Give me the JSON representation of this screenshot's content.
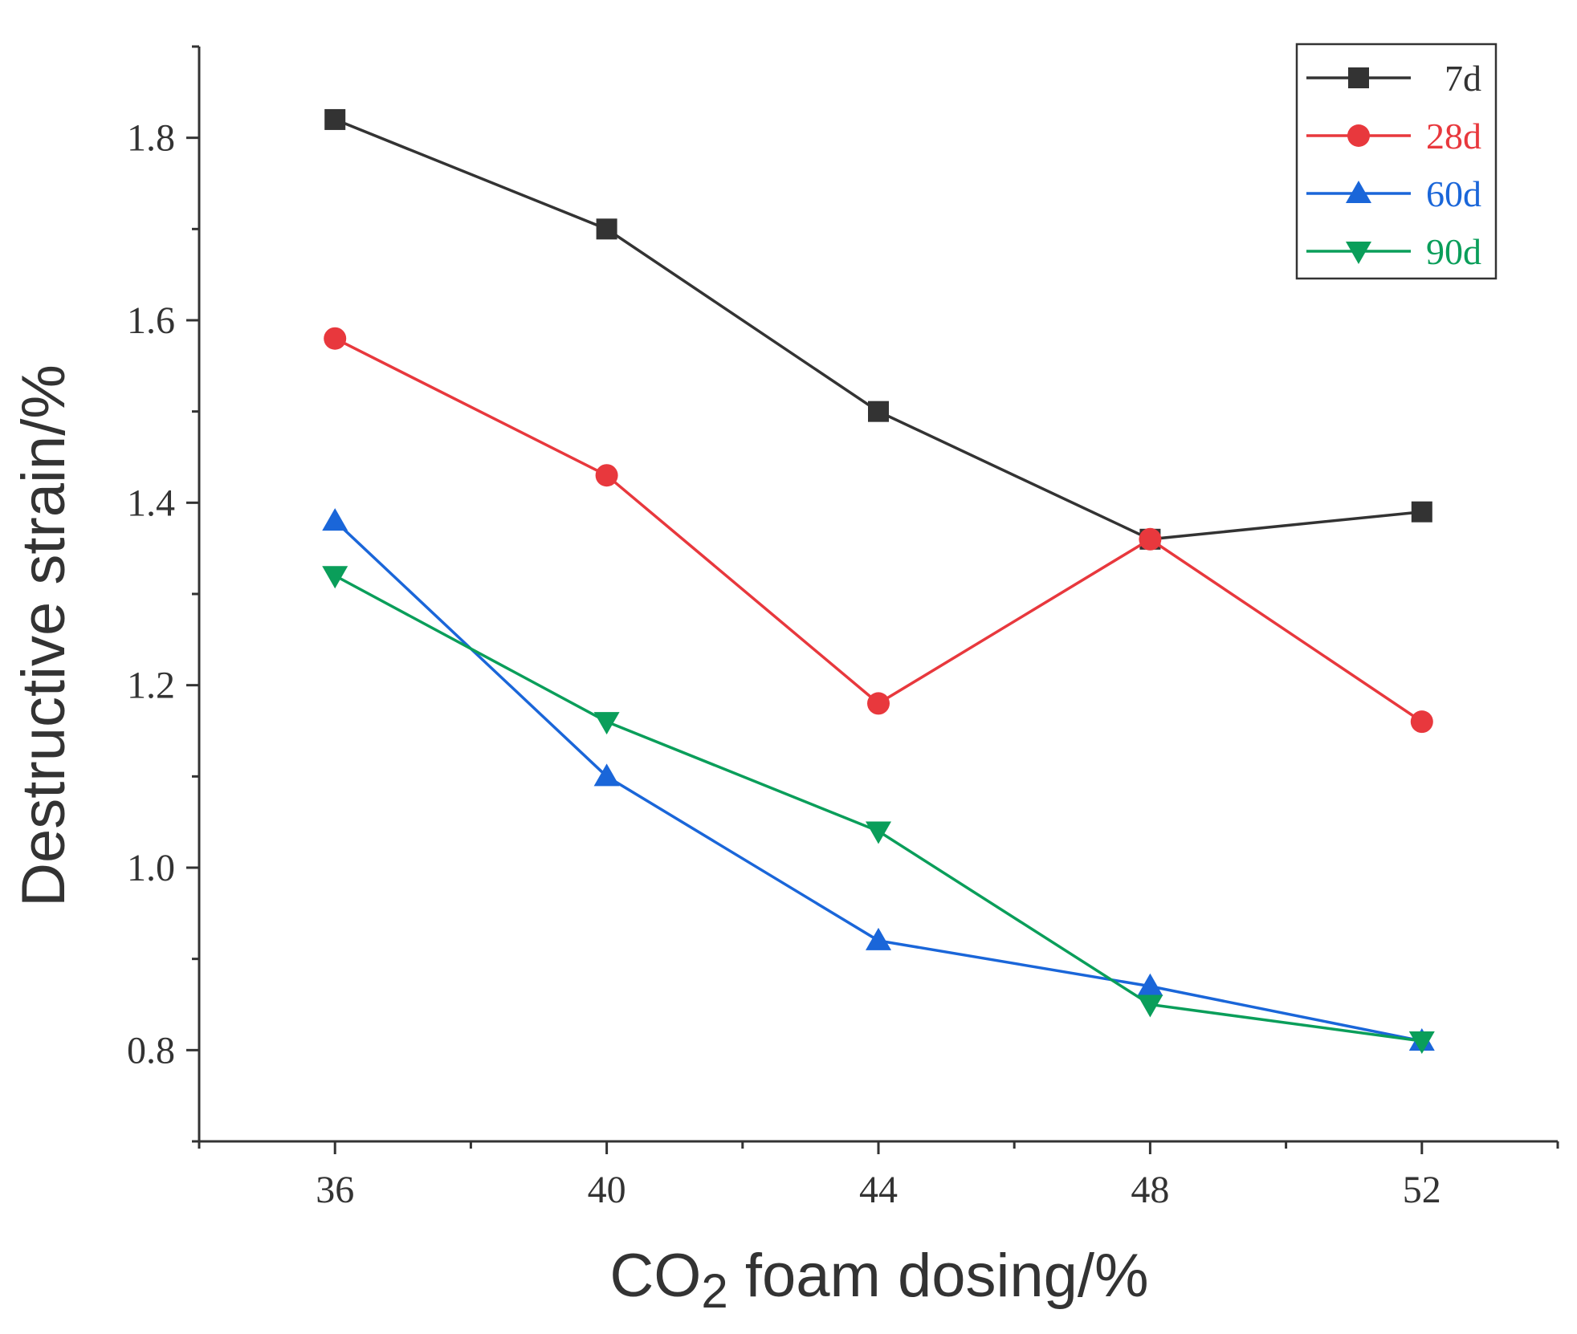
{
  "chart_data": {
    "type": "line",
    "title": "",
    "xlabel": {
      "main": "CO",
      "sub": "2",
      "rest": " foam dosing/%"
    },
    "ylabel": "Destructive strain/%",
    "x": [
      36,
      40,
      44,
      48,
      52
    ],
    "xlim": [
      34,
      54
    ],
    "ylim": [
      0.7,
      1.9
    ],
    "x_ticks": [
      "36",
      "40",
      "44",
      "48",
      "52"
    ],
    "y_ticks": [
      "0.8",
      "1.0",
      "1.2",
      "1.4",
      "1.6",
      "1.8"
    ],
    "grid": false,
    "legend_position": "top-right",
    "series": [
      {
        "name": "7d",
        "color": "#333333",
        "marker": "square",
        "values": [
          1.82,
          1.7,
          1.5,
          1.36,
          1.39
        ]
      },
      {
        "name": "28d",
        "color": "#e8383d",
        "marker": "circle",
        "values": [
          1.58,
          1.43,
          1.18,
          1.36,
          1.16
        ]
      },
      {
        "name": "60d",
        "color": "#1a66d9",
        "marker": "triangle-up",
        "values": [
          1.38,
          1.1,
          0.92,
          0.87,
          0.81
        ]
      },
      {
        "name": "90d",
        "color": "#0a9e5a",
        "marker": "triangle-down",
        "values": [
          1.32,
          1.16,
          1.04,
          0.85,
          0.81
        ]
      }
    ]
  }
}
